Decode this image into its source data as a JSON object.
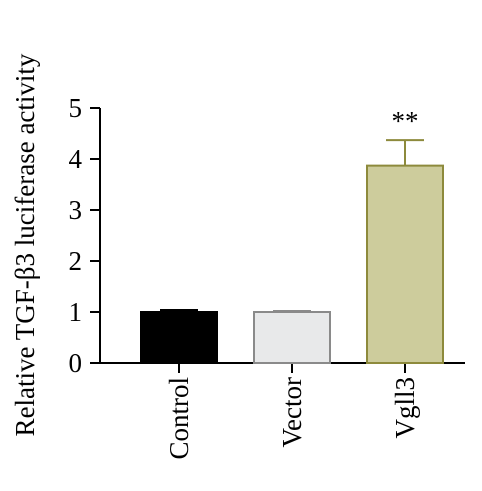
{
  "chart_data": {
    "type": "bar",
    "ylabel": "Relative TGF-β3 luciferase activity",
    "categories": [
      "Control",
      "Vector",
      "Vgll3"
    ],
    "values": [
      1.0,
      1.0,
      3.87
    ],
    "errors": [
      0.04,
      0.02,
      0.5
    ],
    "significance": [
      null,
      null,
      "**"
    ],
    "colors": [
      "#000000",
      "#e8e9ea",
      "#cdcc9c"
    ],
    "edge_colors": [
      "#000000",
      "#8a8a8a",
      "#8d8a3c"
    ],
    "ylim": [
      0,
      5
    ],
    "yticks": [
      0,
      1,
      2,
      3,
      4,
      5
    ]
  }
}
